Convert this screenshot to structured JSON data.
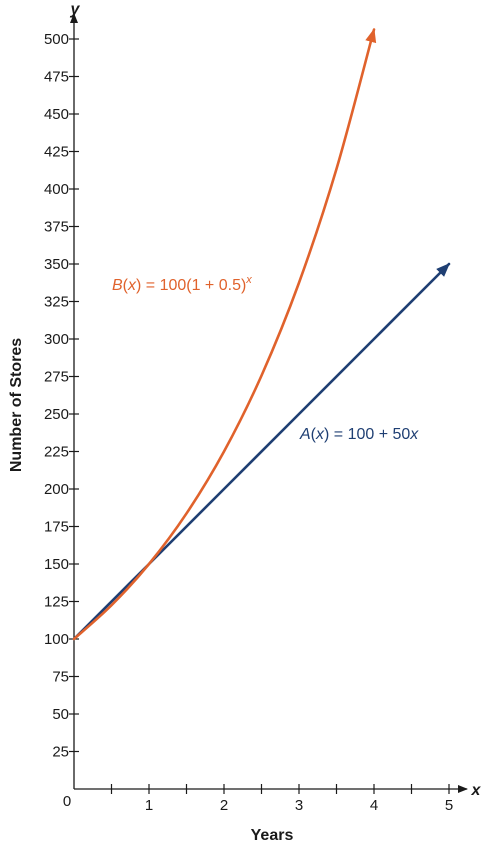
{
  "chart_data": {
    "type": "line",
    "xlabel": "Years",
    "ylabel": "Number of Stores",
    "x_axis_var": "x",
    "y_axis_var": "y",
    "origin_label": "0",
    "xlim": [
      0,
      5
    ],
    "ylim": [
      0,
      500
    ],
    "x_ticks": [
      1,
      2,
      3,
      4,
      5
    ],
    "x_minor_step": 0.5,
    "y_ticks": [
      25,
      50,
      75,
      100,
      125,
      150,
      175,
      200,
      225,
      250,
      275,
      300,
      325,
      350,
      375,
      400,
      425,
      450,
      475,
      500
    ],
    "grid": false,
    "series": [
      {
        "key": "A",
        "color": "#1f3f73",
        "label_parts": [
          "A",
          "(",
          "x",
          ") = 100 + 50",
          "x"
        ],
        "x": [
          0,
          1,
          2,
          3,
          4,
          5
        ],
        "y": [
          100,
          150,
          200,
          250,
          300,
          350
        ]
      },
      {
        "key": "B",
        "color": "#e0622c",
        "label_parts": [
          "B",
          "(",
          "x",
          ") = 100(1 + 0.5)",
          "x"
        ],
        "x": [
          0,
          0.5,
          1,
          1.5,
          2,
          2.5,
          3,
          3.5,
          4
        ],
        "y": [
          100,
          122.5,
          150,
          183.7,
          225,
          275.6,
          337.5,
          413.4,
          506.3
        ]
      }
    ]
  }
}
